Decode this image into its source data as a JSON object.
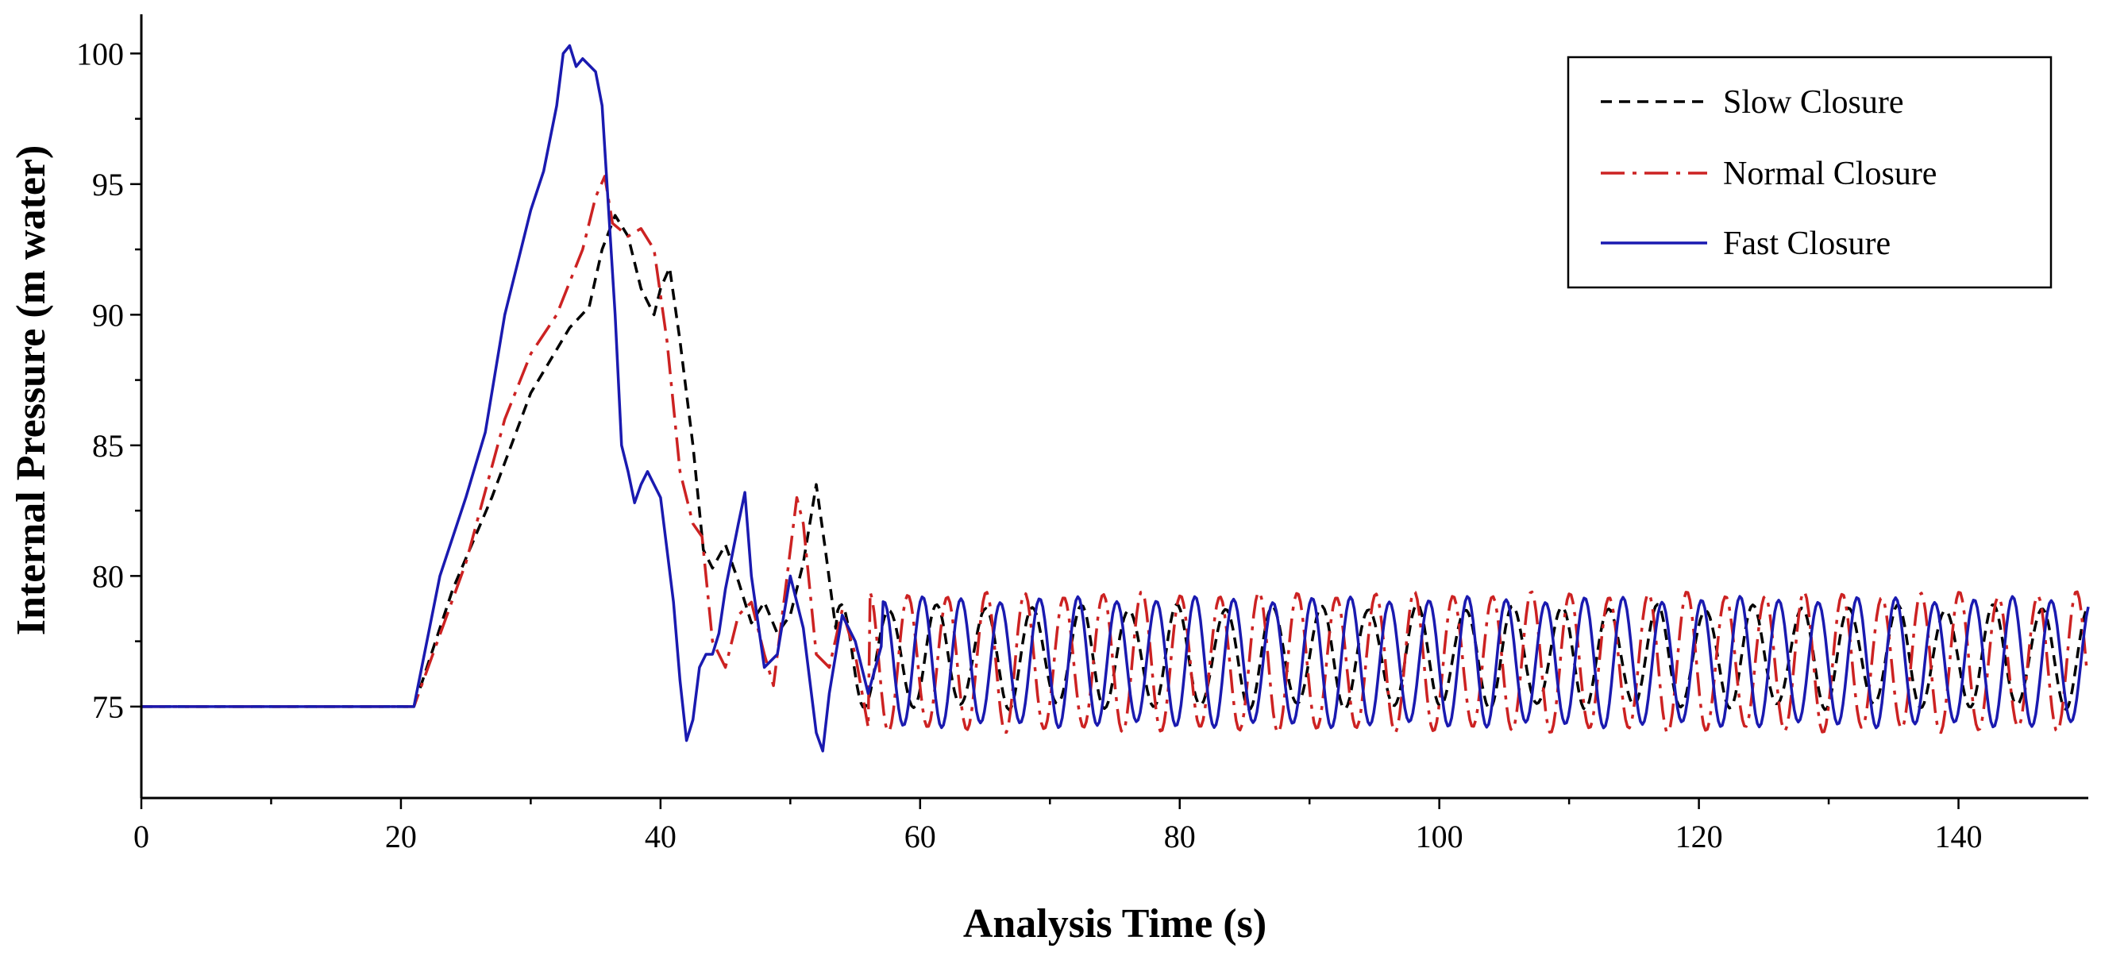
{
  "chart_data": {
    "type": "line",
    "title": "",
    "xlabel": "Analysis Time (s)",
    "ylabel": "Internal Pressure (m water)",
    "xlim": [
      0,
      150
    ],
    "ylim": [
      71.5,
      101.5
    ],
    "xticks": [
      0,
      20,
      40,
      60,
      80,
      100,
      120,
      140
    ],
    "yticks": [
      75,
      80,
      85,
      90,
      95,
      100
    ],
    "grid": false,
    "legend_position": "top-right",
    "series": [
      {
        "name": "Slow Closure",
        "color": "#000000",
        "dash": "dashed",
        "draw_order": 0,
        "keypoints": [
          [
            0,
            75
          ],
          [
            21,
            75
          ],
          [
            24,
            79.5
          ],
          [
            27,
            83
          ],
          [
            30,
            87
          ],
          [
            33,
            89.5
          ],
          [
            34.5,
            90.3
          ],
          [
            35.5,
            92.5
          ],
          [
            36.5,
            93.8
          ],
          [
            37.5,
            93
          ],
          [
            38.5,
            91
          ],
          [
            39.5,
            90
          ],
          [
            40,
            91
          ],
          [
            40.7,
            91.8
          ],
          [
            41.5,
            89
          ],
          [
            42.5,
            85
          ],
          [
            43.3,
            81
          ],
          [
            44,
            80.3
          ],
          [
            45,
            81.2
          ],
          [
            46,
            79.8
          ],
          [
            47,
            78.2
          ],
          [
            48,
            79
          ],
          [
            49,
            77.8
          ],
          [
            50,
            78.5
          ],
          [
            51,
            80.5
          ],
          [
            52,
            83.5
          ],
          [
            52.7,
            81
          ],
          [
            53.5,
            78
          ]
        ],
        "oscillation": {
          "start": 53.5,
          "end": 150,
          "center": 76.9,
          "amplitude": 1.9,
          "period": 3.7,
          "phase": 0.9
        }
      },
      {
        "name": "Normal Closure",
        "color": "#cc2222",
        "dash": "dash-dot",
        "draw_order": 1,
        "keypoints": [
          [
            0,
            75
          ],
          [
            21,
            75
          ],
          [
            25,
            80.5
          ],
          [
            28,
            86
          ],
          [
            30,
            88.5
          ],
          [
            32,
            90
          ],
          [
            34,
            92.5
          ],
          [
            35,
            94.5
          ],
          [
            35.7,
            95.3
          ],
          [
            36.3,
            93.5
          ],
          [
            37.5,
            93
          ],
          [
            38.5,
            93.3
          ],
          [
            39.5,
            92.5
          ],
          [
            40.5,
            89
          ],
          [
            41.5,
            84
          ],
          [
            42.5,
            82
          ],
          [
            43.2,
            81.5
          ],
          [
            44,
            77.5
          ],
          [
            45,
            76.5
          ],
          [
            46,
            78.5
          ],
          [
            47,
            79
          ],
          [
            48,
            77
          ],
          [
            48.7,
            75.8
          ],
          [
            49.5,
            79
          ],
          [
            50.5,
            83
          ],
          [
            51,
            82
          ],
          [
            52,
            77
          ],
          [
            53,
            76.5
          ],
          [
            54,
            78.7
          ],
          [
            55,
            77
          ],
          [
            56,
            74.2
          ]
        ],
        "oscillation": {
          "start": 56,
          "end": 150,
          "center": 76.7,
          "amplitude": 2.6,
          "period": 3.0,
          "phase": 1.4
        }
      },
      {
        "name": "Fast Closure",
        "color": "#1a1ab0",
        "dash": "solid",
        "draw_order": 2,
        "keypoints": [
          [
            0,
            75
          ],
          [
            21,
            75
          ],
          [
            23,
            80
          ],
          [
            25,
            83
          ],
          [
            26.5,
            85.5
          ],
          [
            28,
            90
          ],
          [
            29,
            92
          ],
          [
            30,
            94
          ],
          [
            31,
            95.5
          ],
          [
            32,
            98
          ],
          [
            32.5,
            100
          ],
          [
            33,
            100.3
          ],
          [
            33.5,
            99.5
          ],
          [
            34,
            99.8
          ],
          [
            35,
            99.3
          ],
          [
            35.5,
            98
          ],
          [
            36,
            94
          ],
          [
            36.5,
            90
          ],
          [
            37,
            85
          ],
          [
            37.5,
            84
          ],
          [
            38,
            82.8
          ],
          [
            38.5,
            83.5
          ],
          [
            39,
            84
          ],
          [
            40,
            83
          ],
          [
            41,
            79
          ],
          [
            41.5,
            76
          ],
          [
            42,
            73.7
          ],
          [
            42.5,
            74.5
          ],
          [
            43,
            76.5
          ],
          [
            43.5,
            77
          ],
          [
            44,
            77
          ],
          [
            44.5,
            77.8
          ],
          [
            45,
            79.5
          ],
          [
            46,
            82
          ],
          [
            46.5,
            83.2
          ],
          [
            47,
            80
          ],
          [
            48,
            76.5
          ],
          [
            49,
            77
          ],
          [
            50,
            80
          ],
          [
            51,
            78
          ],
          [
            52,
            74
          ],
          [
            52.5,
            73.3
          ],
          [
            53,
            75.5
          ],
          [
            54,
            78.5
          ],
          [
            55,
            77.5
          ],
          [
            56,
            75.5
          ],
          [
            57,
            77.3
          ]
        ],
        "oscillation": {
          "start": 57,
          "end": 150,
          "center": 76.7,
          "amplitude": 2.4,
          "period": 3.0,
          "phase": 1.2
        }
      }
    ]
  }
}
